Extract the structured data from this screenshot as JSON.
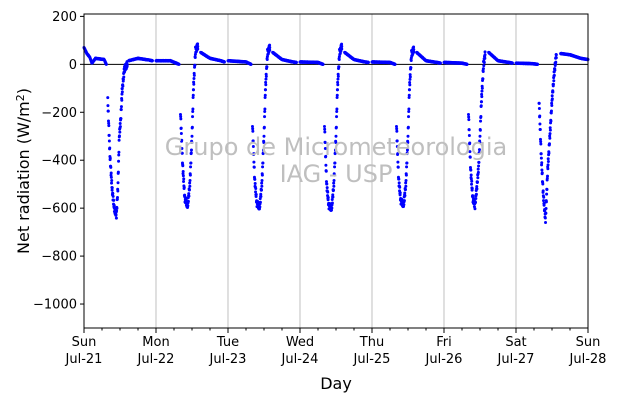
{
  "chart_data": {
    "type": "scatter",
    "title": "",
    "xlabel": "Day",
    "ylabel": "Net radiation (W/m²)",
    "ylim": [
      -1100,
      210
    ],
    "xlim": [
      0,
      7
    ],
    "yticks": [
      200,
      0,
      -200,
      -400,
      -600,
      -800,
      -1000
    ],
    "ytick_labels": [
      "200",
      "0",
      "−200",
      "−400",
      "−600",
      "−800",
      "−1000"
    ],
    "xticks": [
      {
        "x": 0,
        "day": "Sun",
        "date": "Jul-21"
      },
      {
        "x": 1,
        "day": "Mon",
        "date": "Jul-22"
      },
      {
        "x": 2,
        "day": "Tue",
        "date": "Jul-23"
      },
      {
        "x": 3,
        "day": "Wed",
        "date": "Jul-24"
      },
      {
        "x": 4,
        "day": "Thu",
        "date": "Jul-25"
      },
      {
        "x": 5,
        "day": "Fri",
        "date": "Jul-26"
      },
      {
        "x": 6,
        "day": "Sat",
        "date": "Jul-27"
      },
      {
        "x": 7,
        "day": "Sun",
        "date": "Jul-28"
      }
    ],
    "grid": "vertical-major",
    "zero_line": true,
    "marker_color": "#0000ff",
    "watermark": [
      "Grupo de Micrometeorologia",
      "IAG - USP"
    ],
    "series": [
      {
        "days": [
          {
            "start": 0,
            "base": 0,
            "pre": [
              [
                0.0,
                70
              ],
              [
                0.04,
                45
              ],
              [
                0.08,
                30
              ],
              [
                0.11,
                5
              ],
              [
                0.16,
                25
              ],
              [
                0.28,
                20
              ],
              [
                0.31,
                0
              ]
            ],
            "dip": [
              [
                0.33,
                -150
              ],
              [
                0.36,
                -380
              ],
              [
                0.39,
                -520
              ],
              [
                0.42,
                -600
              ],
              [
                0.45,
                -630
              ],
              [
                0.47,
                -520
              ],
              [
                0.49,
                -300
              ],
              [
                0.51,
                -230
              ],
              [
                0.53,
                -110
              ],
              [
                0.56,
                -20
              ],
              [
                0.6,
                0
              ]
            ],
            "post": [
              [
                0.62,
                15
              ],
              [
                0.75,
                25
              ],
              [
                0.9,
                18
              ],
              [
                0.95,
                15
              ]
            ]
          },
          {
            "start": 1,
            "base": 0,
            "pre": [
              [
                0.0,
                15
              ],
              [
                0.2,
                15
              ],
              [
                0.32,
                0
              ]
            ],
            "dip": [
              [
                0.34,
                -200
              ],
              [
                0.37,
                -420
              ],
              [
                0.4,
                -560
              ],
              [
                0.44,
                -590
              ],
              [
                0.47,
                -500
              ],
              [
                0.5,
                -300
              ],
              [
                0.52,
                -100
              ],
              [
                0.55,
                60
              ],
              [
                0.58,
                75
              ]
            ],
            "post": [
              [
                0.62,
                50
              ],
              [
                0.75,
                25
              ],
              [
                0.9,
                15
              ],
              [
                0.95,
                10
              ]
            ]
          },
          {
            "start": 2,
            "base": 0,
            "pre": [
              [
                0.0,
                15
              ],
              [
                0.25,
                10
              ],
              [
                0.32,
                0
              ]
            ],
            "dip": [
              [
                0.34,
                -250
              ],
              [
                0.37,
                -480
              ],
              [
                0.4,
                -580
              ],
              [
                0.44,
                -595
              ],
              [
                0.47,
                -500
              ],
              [
                0.5,
                -300
              ],
              [
                0.52,
                -100
              ],
              [
                0.55,
                50
              ],
              [
                0.58,
                70
              ]
            ],
            "post": [
              [
                0.62,
                50
              ],
              [
                0.75,
                20
              ],
              [
                0.9,
                10
              ],
              [
                0.95,
                8
              ]
            ]
          },
          {
            "start": 3,
            "base": 0,
            "pre": [
              [
                0.0,
                10
              ],
              [
                0.25,
                8
              ],
              [
                0.32,
                0
              ]
            ],
            "dip": [
              [
                0.34,
                -250
              ],
              [
                0.37,
                -500
              ],
              [
                0.4,
                -590
              ],
              [
                0.44,
                -600
              ],
              [
                0.47,
                -500
              ],
              [
                0.5,
                -300
              ],
              [
                0.52,
                -100
              ],
              [
                0.55,
                50
              ],
              [
                0.58,
                75
              ]
            ],
            "post": [
              [
                0.62,
                50
              ],
              [
                0.75,
                20
              ],
              [
                0.9,
                10
              ],
              [
                0.95,
                8
              ]
            ]
          },
          {
            "start": 4,
            "base": 0,
            "pre": [
              [
                0.0,
                10
              ],
              [
                0.25,
                8
              ],
              [
                0.32,
                0
              ]
            ],
            "dip": [
              [
                0.34,
                -250
              ],
              [
                0.37,
                -480
              ],
              [
                0.4,
                -570
              ],
              [
                0.44,
                -585
              ],
              [
                0.47,
                -500
              ],
              [
                0.5,
                -300
              ],
              [
                0.52,
                -100
              ],
              [
                0.55,
                45
              ],
              [
                0.58,
                62
              ]
            ],
            "post": [
              [
                0.62,
                50
              ],
              [
                0.75,
                15
              ],
              [
                0.9,
                8
              ],
              [
                0.95,
                5
              ]
            ]
          },
          {
            "start": 5,
            "base": 0,
            "pre": [
              [
                0.0,
                8
              ],
              [
                0.25,
                5
              ],
              [
                0.32,
                0
              ]
            ],
            "dip": [
              [
                0.34,
                -200
              ],
              [
                0.37,
                -440
              ],
              [
                0.4,
                -560
              ],
              [
                0.43,
                -590
              ],
              [
                0.46,
                -500
              ],
              [
                0.48,
                -430
              ],
              [
                0.5,
                -300
              ],
              [
                0.52,
                -150
              ],
              [
                0.55,
                0
              ],
              [
                0.57,
                40
              ]
            ],
            "post": [
              [
                0.62,
                50
              ],
              [
                0.75,
                15
              ],
              [
                0.9,
                8
              ],
              [
                0.95,
                5
              ]
            ]
          },
          {
            "start": 6,
            "base": 0,
            "pre": [
              [
                0.0,
                5
              ],
              [
                0.22,
                3
              ],
              [
                0.3,
                0
              ]
            ],
            "dip": [
              [
                0.32,
                -150
              ],
              [
                0.35,
                -380
              ],
              [
                0.38,
                -550
              ],
              [
                0.41,
                -650
              ],
              [
                0.44,
                -440
              ],
              [
                0.47,
                -300
              ],
              [
                0.5,
                -150
              ],
              [
                0.53,
                -40
              ],
              [
                0.56,
                40
              ]
            ],
            "post": [
              [
                0.62,
                45
              ],
              [
                0.75,
                40
              ],
              [
                0.9,
                25
              ],
              [
                1.0,
                20
              ]
            ]
          }
        ]
      }
    ]
  }
}
